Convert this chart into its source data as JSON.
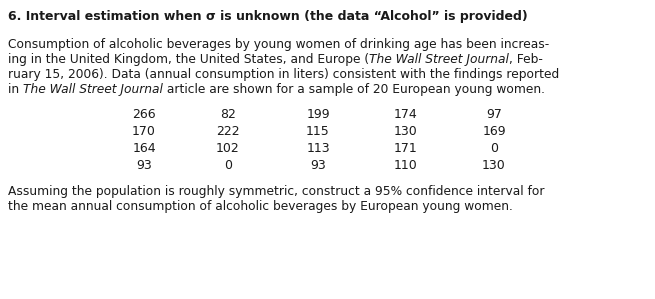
{
  "title": "6. Interval estimation when σ is unknown (the data “Alcohol” is provided)",
  "para_line1": "Consumption of alcoholic beverages by young women of drinking age has been increas-",
  "para_line2_pre": "ing in the United Kingdom, the United States, and Europe (",
  "para_line2_italic": "The Wall Street Journal",
  "para_line2_post": ", Feb-",
  "para_line3": "ruary 15, 2006). Data (annual consumption in liters) consistent with the findings reported",
  "para_line4_pre": "in ",
  "para_line4_italic": "The Wall Street Journal",
  "para_line4_post": " article are shown for a sample of 20 European young women.",
  "data_rows": [
    [
      266,
      82,
      199,
      174,
      97
    ],
    [
      170,
      222,
      115,
      130,
      169
    ],
    [
      164,
      102,
      113,
      171,
      0
    ],
    [
      93,
      0,
      93,
      110,
      130
    ]
  ],
  "footer_line1": "Assuming the population is roughly symmetric, construct a 95% confidence interval for",
  "footer_line2": "the mean annual consumption of alcoholic beverages by European young women.",
  "background_color": "#ffffff",
  "text_color": "#1a1a1a",
  "title_fontsize": 9.0,
  "body_fontsize": 8.8,
  "data_fontsize": 9.0
}
